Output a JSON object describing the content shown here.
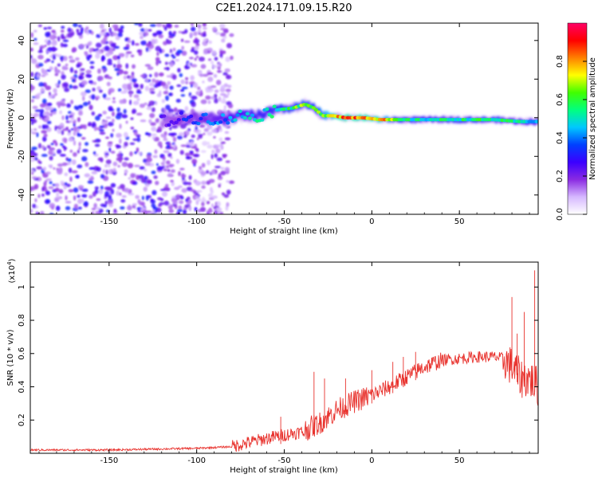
{
  "title": "C2E1.2024.171.09.15.R20",
  "chart_data": [
    {
      "type": "heatmap",
      "xlabel": "Height of straight line (km)",
      "ylabel": "Frequency (Hz)",
      "xlim": [
        -195,
        95
      ],
      "ylim": [
        -50,
        49
      ],
      "xticks": [
        -150,
        -100,
        -50,
        0,
        50
      ],
      "yticks": [
        -40,
        -20,
        0,
        20,
        40
      ],
      "colorbar": {
        "label": "Normalized spectral amplitude",
        "range": [
          0.0,
          1.0
        ],
        "ticks": [
          0.0,
          0.2,
          0.4,
          0.6,
          0.8
        ],
        "colors": [
          "#ffffff",
          "#d6b8ff",
          "#8a2be2",
          "#3b00ff",
          "#0040ff",
          "#00c8ff",
          "#00ff80",
          "#40ff00",
          "#ffff00",
          "#ff8000",
          "#ff0000",
          "#ff0066"
        ]
      },
      "ridge": {
        "x": [
          -120,
          -105,
          -95,
          -85,
          -75,
          -65,
          -55,
          -45,
          -38,
          -33,
          -28,
          -22,
          -15,
          -5,
          5,
          15,
          30,
          50,
          70,
          85,
          95
        ],
        "y": [
          -2,
          0,
          0,
          -1,
          1,
          1,
          4,
          5,
          7,
          5,
          1,
          1,
          0,
          0,
          -1,
          -1,
          -1,
          -1,
          -1,
          -2,
          -2
        ],
        "intensity": [
          0.25,
          0.35,
          0.4,
          0.45,
          0.5,
          0.55,
          0.6,
          0.65,
          0.7,
          0.65,
          0.75,
          0.9,
          0.95,
          0.95,
          0.9,
          0.6,
          0.55,
          0.6,
          0.6,
          0.55,
          0.5
        ]
      },
      "colorbar_ticks": [
        "0.0",
        "0.2",
        "0.4",
        "0.6",
        "0.8"
      ]
    },
    {
      "type": "line",
      "xlabel": "Height of straight line (km)",
      "ylabel": "SNR (10 * v/v)",
      "scale_label": "(x10",
      "scale_exp": "4",
      "scale_close": ")",
      "xlim": [
        -195,
        95
      ],
      "ylim": [
        0.0,
        1.15
      ],
      "xticks": [
        -150,
        -100,
        -50,
        0,
        50
      ],
      "yticks": [
        0.2,
        0.4,
        0.6,
        0.8,
        1.0
      ],
      "series": [
        {
          "color": "#e8322d",
          "trend": {
            "x": [
              -195,
              -150,
              -100,
              -80,
              -60,
              -40,
              -30,
              -20,
              -10,
              0,
              10,
              20,
              30,
              40,
              50,
              60,
              70,
              75,
              80,
              85,
              90,
              95
            ],
            "y": [
              0.02,
              0.02,
              0.03,
              0.04,
              0.09,
              0.13,
              0.18,
              0.26,
              0.31,
              0.35,
              0.4,
              0.46,
              0.52,
              0.56,
              0.57,
              0.58,
              0.58,
              0.57,
              0.52,
              0.45,
              0.45,
              0.4
            ]
          },
          "spikes": {
            "x": [
              -52,
              -33,
              -27,
              -15,
              0,
              12,
              18,
              25,
              80,
              83,
              87,
              93
            ],
            "y": [
              0.22,
              0.49,
              0.45,
              0.45,
              0.5,
              0.55,
              0.58,
              0.61,
              0.94,
              0.72,
              0.85,
              1.1
            ]
          }
        }
      ]
    }
  ]
}
